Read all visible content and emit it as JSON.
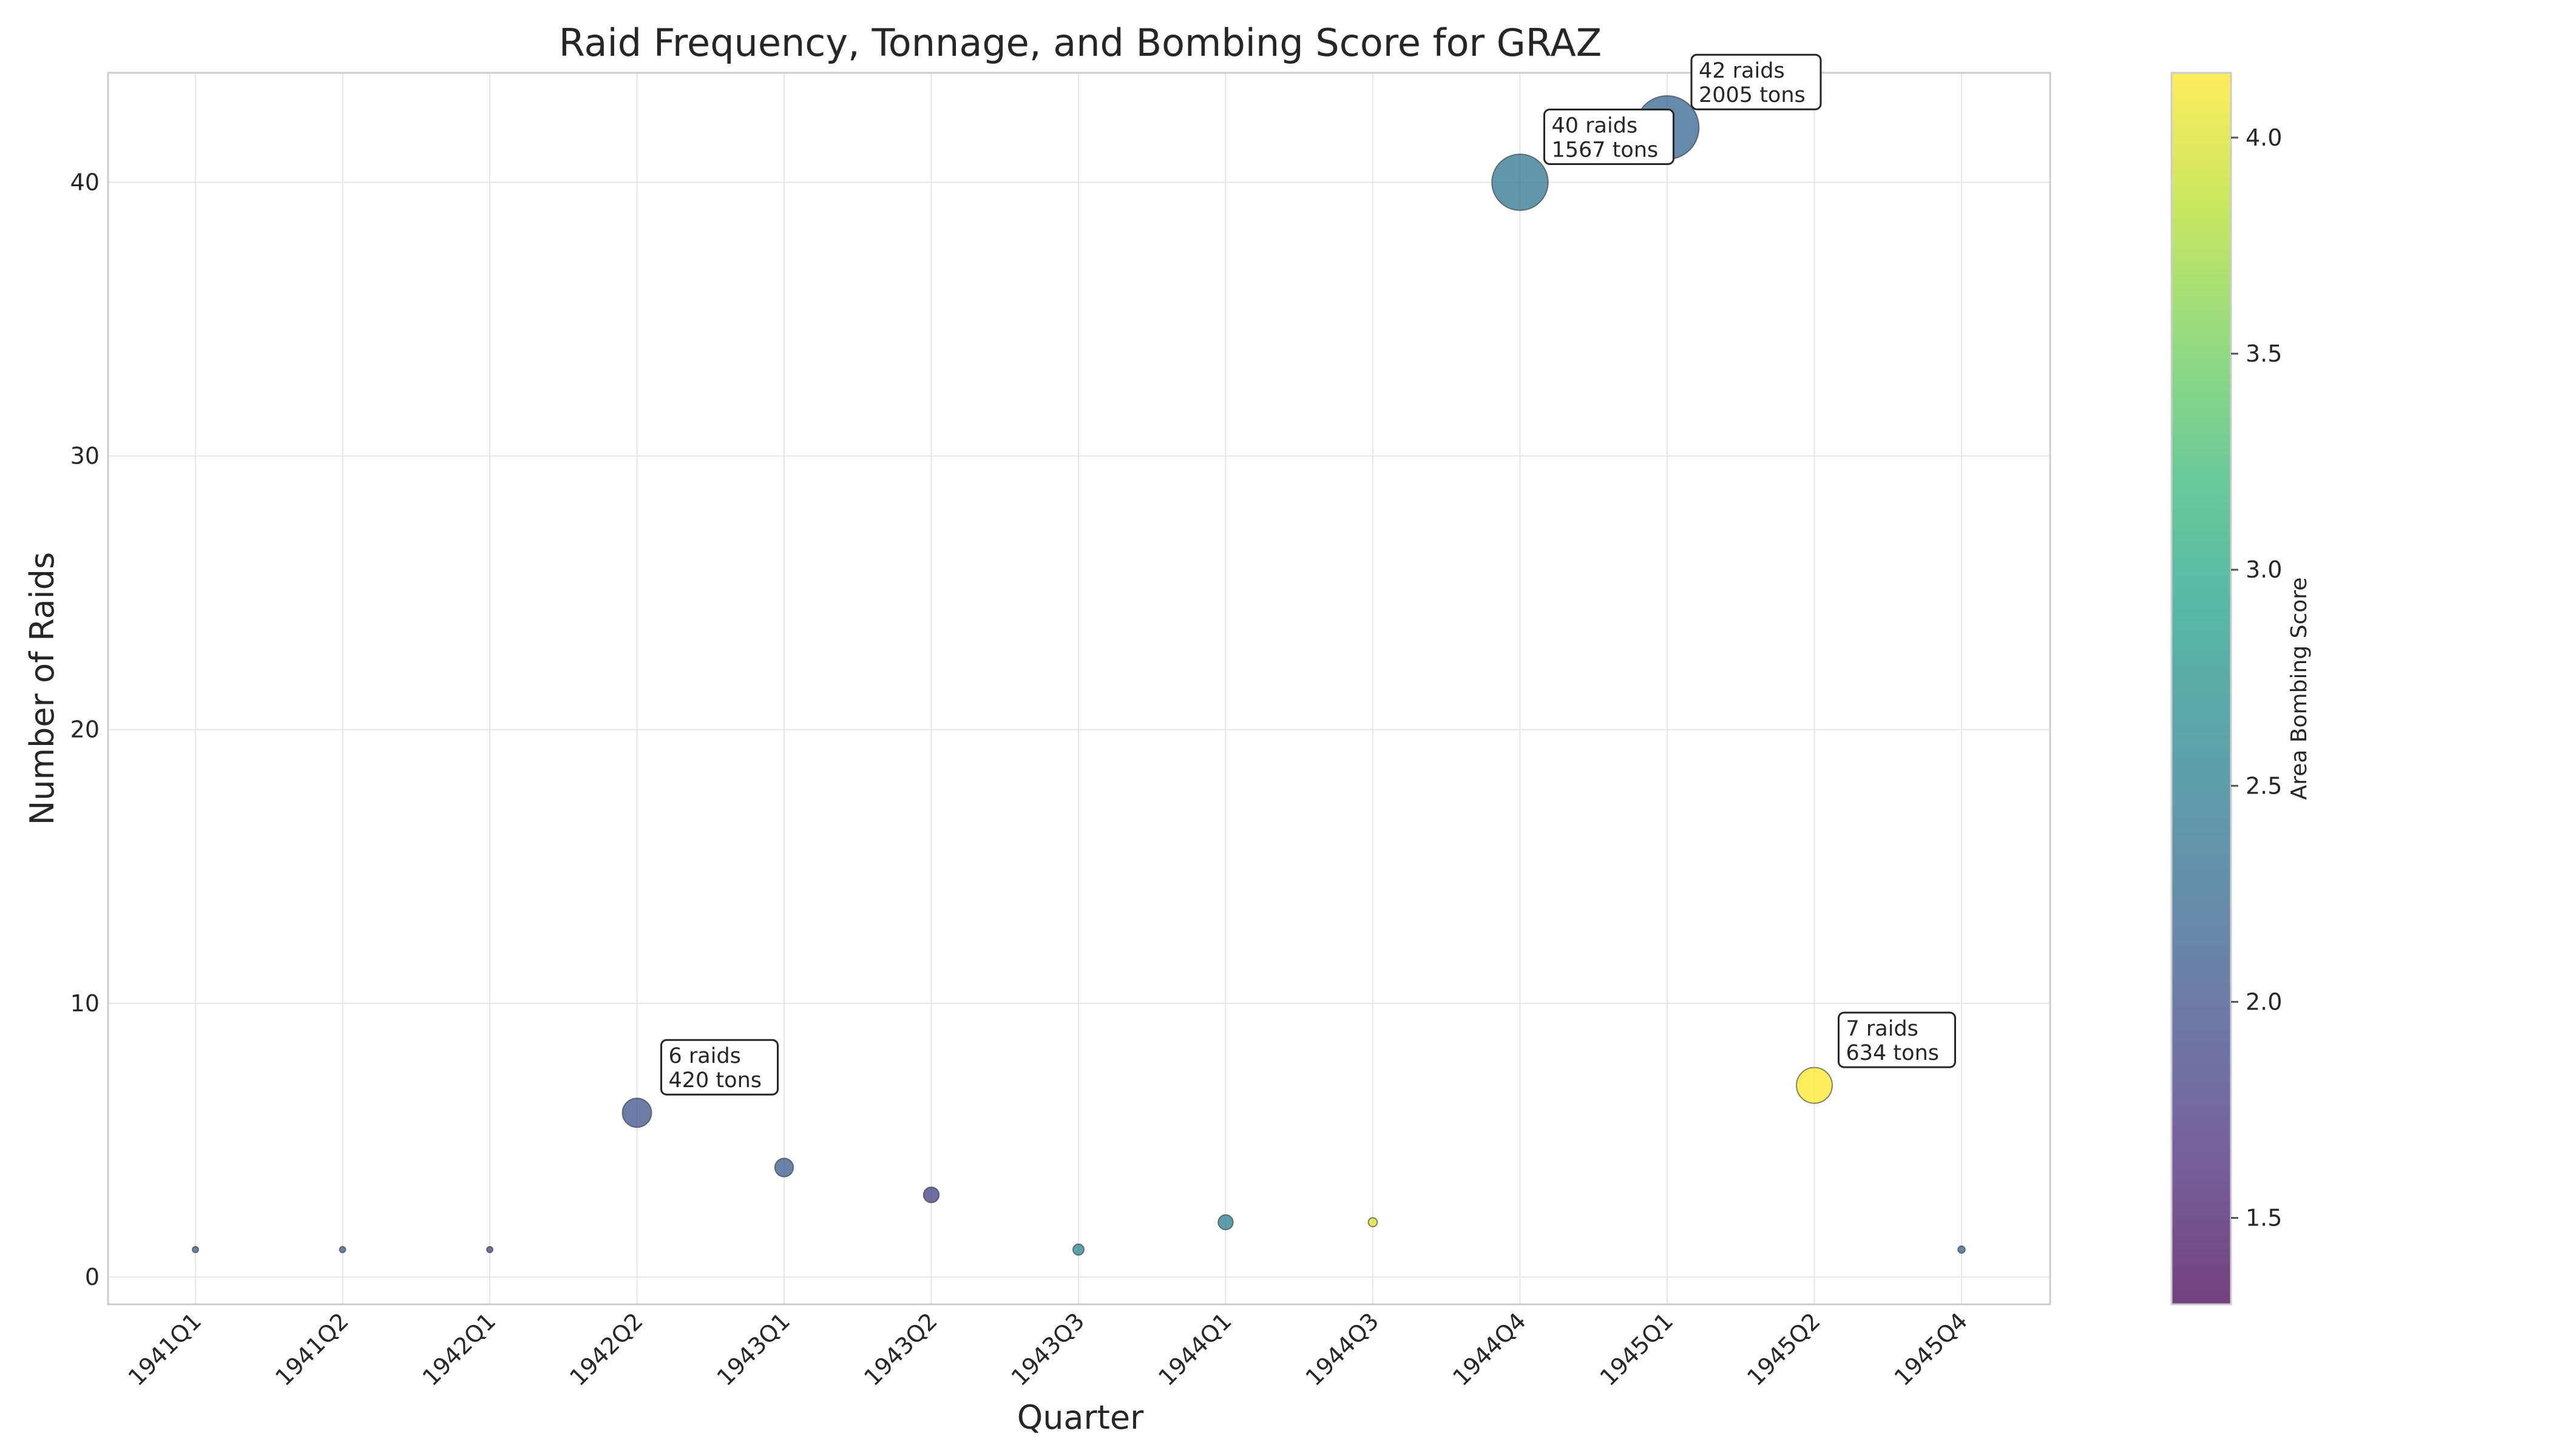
{
  "chart_data": {
    "type": "scatter",
    "title": "Raid Frequency, Tonnage, and Bombing Score for GRAZ",
    "xlabel": "Quarter",
    "ylabel": "Number of Raids",
    "colorbar_label": "Area Bombing Score",
    "categories": [
      "1941Q1",
      "1941Q2",
      "1942Q1",
      "1942Q2",
      "1943Q1",
      "1943Q2",
      "1943Q3",
      "1944Q1",
      "1944Q3",
      "1944Q4",
      "1945Q1",
      "1945Q2",
      "1945Q4"
    ],
    "raids": [
      1,
      1,
      1,
      6,
      4,
      3,
      1,
      2,
      2,
      40,
      42,
      7,
      1
    ],
    "tons": [
      18,
      8,
      3,
      420,
      170,
      120,
      60,
      110,
      40,
      1567,
      2005,
      634,
      25
    ],
    "score": [
      2.1,
      2.1,
      1.9,
      2.0,
      2.1,
      1.8,
      2.6,
      2.5,
      4.0,
      2.4,
      2.2,
      4.15,
      2.2
    ],
    "ylim": [
      -1,
      44
    ],
    "yticks": [
      0,
      10,
      20,
      30,
      40
    ],
    "color_range": [
      1.3,
      4.15
    ],
    "colorbar_ticks": [
      1.5,
      2.0,
      2.5,
      3.0,
      3.5,
      4.0
    ],
    "colormap": "viridis",
    "grid": true,
    "annotations": [
      {
        "index": 3,
        "line1": "6 raids",
        "line2": "420 tons"
      },
      {
        "index": 9,
        "line1": "40 raids",
        "line2": "1567 tons"
      },
      {
        "index": 10,
        "line1": "42 raids",
        "line2": "2005 tons"
      },
      {
        "index": 11,
        "line1": "7 raids",
        "line2": "634 tons"
      }
    ]
  }
}
